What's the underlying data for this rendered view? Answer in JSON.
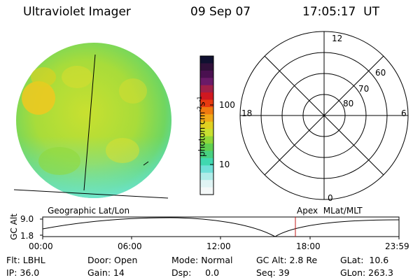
{
  "header": {
    "instrument": "Ultraviolet Imager",
    "date": "09 Sep 07",
    "time": "17:05:17  UT"
  },
  "image_panel": {
    "label": "Geographic Lat/Lon"
  },
  "colorbar": {
    "label": "photon cm",
    "label_sup1": "-2",
    "label_mid": "s",
    "label_sup2": "-1",
    "ticks": [
      "100",
      "10"
    ],
    "colors": [
      "#101030",
      "#30103a",
      "#4a1050",
      "#6a1a68",
      "#a02048",
      "#d01820",
      "#e83a10",
      "#f07a10",
      "#f0a818",
      "#e0d020",
      "#c8e030",
      "#90d838",
      "#60d050",
      "#48d080",
      "#40d8b0",
      "#70e0d8",
      "#b0ece8",
      "#e0f4f4",
      "#f4f8f8"
    ]
  },
  "polar_plot": {
    "clock_labels": [
      "12",
      "18",
      "6",
      "0"
    ],
    "lat_labels": [
      "60",
      "70",
      "80"
    ],
    "label": "Apex  MLat/MLT"
  },
  "orbit_plot": {
    "ylabel": "GC Alt",
    "yticks": [
      "9.0",
      "1.8"
    ],
    "xticks": [
      "00:00",
      "06:00",
      "12:00",
      "18:00",
      "23:59"
    ],
    "marker_color": "#c01818"
  },
  "info": {
    "flt": "Flt: LBHL",
    "ip": "IP: 36.0",
    "door": "Door: Open",
    "gain": "Gain: 14",
    "mode": "Mode: Normal",
    "dsp": "Dsp:     0.0",
    "gcalt": "GC Alt: 2.8 Re",
    "seq": "Seq: 39",
    "glat": "GLat:  10.6",
    "glon": "GLon: 263.3"
  }
}
